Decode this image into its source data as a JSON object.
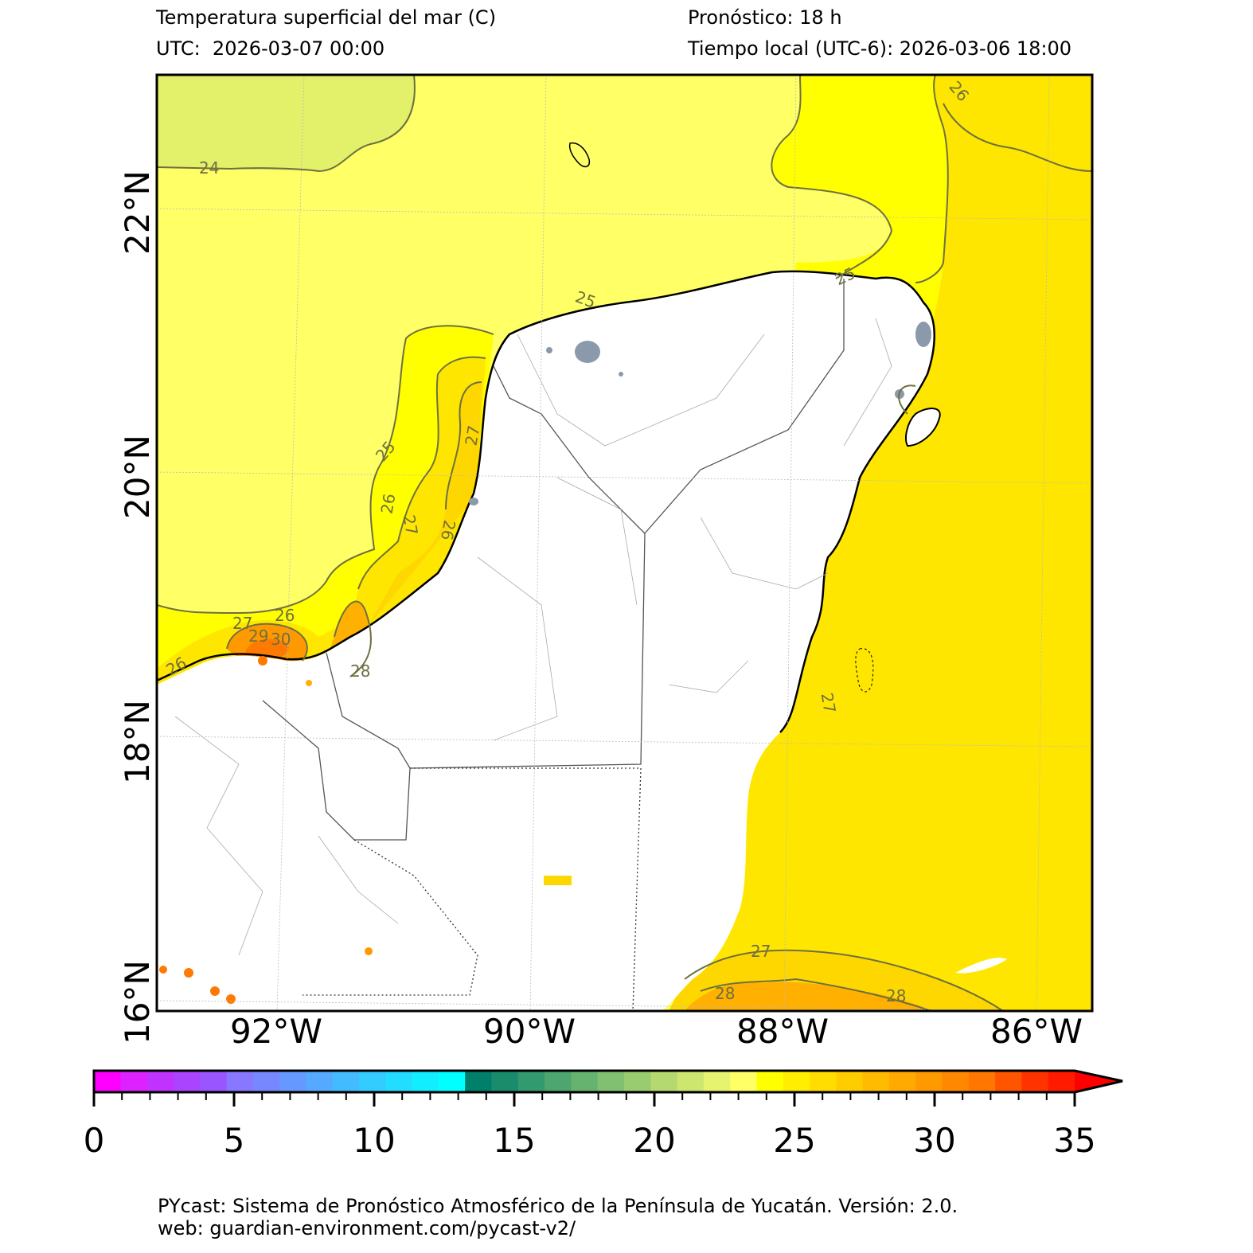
{
  "header": {
    "title": "Temperatura superficial del mar (C)",
    "utc": "UTC:  2026-03-07 00:00",
    "forecast": "Pronóstico: 18 h",
    "local_time": "Tiempo local (UTC-6): 2026-03-06 18:00"
  },
  "map": {
    "lat_labels": [
      "22°N",
      "20°N",
      "18°N",
      "16°N"
    ],
    "lon_labels": [
      "92°W",
      "90°W",
      "88°W",
      "86°W"
    ],
    "contour_labels": [
      "24",
      "25",
      "25",
      "25",
      "26",
      "26",
      "26",
      "26",
      "26",
      "27",
      "27",
      "27",
      "27",
      "27",
      "28",
      "28",
      "28",
      "29",
      "30"
    ],
    "colors": {
      "t24": "#e3f06a",
      "t25": "#ffff66",
      "t25b": "#ffff00",
      "t26": "#ffe600",
      "t27": "#ffd700",
      "t28": "#ffb000",
      "t29": "#ff9900",
      "t30": "#ff7a00",
      "land": "#ffffff",
      "urban": "#8a9aaa"
    }
  },
  "colorbar": {
    "ticks": [
      "0",
      "5",
      "10",
      "15",
      "20",
      "25",
      "30",
      "35"
    ],
    "colors": [
      "#ff00ff",
      "#dd22ff",
      "#c033ff",
      "#aa44ff",
      "#9955ff",
      "#8877ff",
      "#7788ff",
      "#6699ff",
      "#55aaff",
      "#44bbff",
      "#33ccff",
      "#22ddff",
      "#11eeff",
      "#00ffff",
      "#00806a",
      "#1a8c6c",
      "#33996e",
      "#4da66f",
      "#66b370",
      "#80c070",
      "#99cc70",
      "#b3d970",
      "#cce670",
      "#e6f370",
      "#ffff66",
      "#ffff00",
      "#ffee00",
      "#ffdd00",
      "#ffcc00",
      "#ffbb00",
      "#ffaa00",
      "#ff9900",
      "#ff8800",
      "#ff7700",
      "#ff5500",
      "#ff3300",
      "#ff1a00",
      "#ff0000"
    ],
    "range": [
      0,
      35
    ],
    "extend": "max"
  },
  "footer": {
    "line1": "PYcast: Sistema de Pronóstico Atmosférico de la Península de Yucatán. Versión: 2.0.",
    "line2": "web: guardian-environment.com/pycast-v2/"
  }
}
